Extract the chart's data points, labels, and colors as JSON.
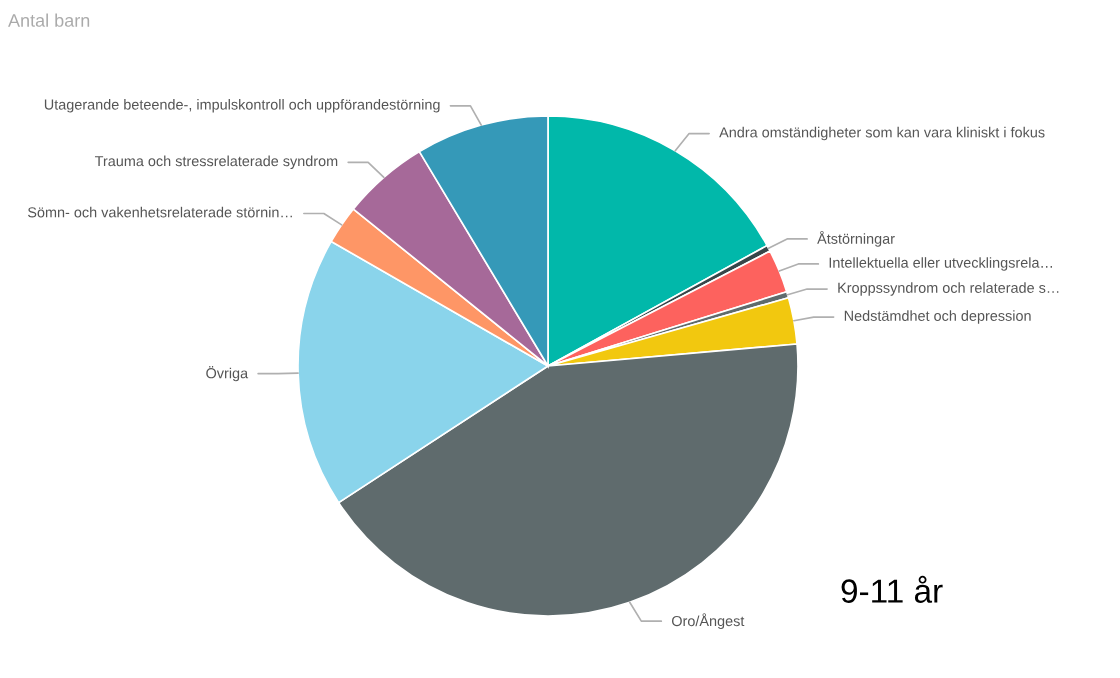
{
  "chart_data": {
    "type": "pie",
    "title": "Antal barn",
    "categories": [
      "Andra omständigheter som kan vara kliniskt i fokus",
      "Åtstörningar",
      "Intellektuella eller utvecklingsrela…",
      "Kroppssyndrom och relaterade s…",
      "Nedstämdhet och depression",
      "Oro/Ångest",
      "Övriga",
      "Sömn- och vakenhetsrelaterade störnin…",
      "Trauma och stressrelaterade syndrom",
      "Utagerande beteende-, impulskontroll och uppförandestörning"
    ],
    "values": [
      17,
      0.4,
      2.8,
      0.4,
      3,
      42.2,
      17.5,
      2.5,
      5.6,
      8.6
    ],
    "colors": [
      "#01b8aa",
      "#374649",
      "#fd625e",
      "#5f6b6d",
      "#f2c80f",
      "#5f6b6d",
      "#8ad4eb",
      "#fe9666",
      "#a66999",
      "#3599b8"
    ],
    "annotations": [
      "9-11 år"
    ]
  }
}
